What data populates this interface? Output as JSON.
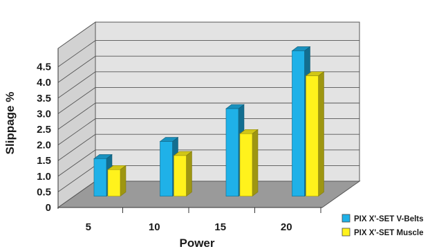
{
  "chart_data": {
    "type": "bar",
    "style": "3d",
    "categories": [
      "5",
      "10",
      "15",
      "20"
    ],
    "series": [
      {
        "name": "PIX X'-SET V-Belts",
        "values": [
          1.2,
          1.75,
          2.8,
          4.65
        ],
        "color": "#1fb1e8"
      },
      {
        "name": "PIX X'-SET Muscle",
        "values": [
          0.85,
          1.3,
          2.0,
          3.85
        ],
        "color": "#fff21c"
      }
    ],
    "xlabel": "Power",
    "ylabel": "Slippage %",
    "yticks": [
      "0",
      "0.5",
      "1.0",
      "1.5",
      "2.0",
      "2.5",
      "3.0",
      "3.5",
      "4.0",
      "4.5"
    ],
    "ylim": [
      0,
      5
    ],
    "grid": true,
    "legend_position": "bottom-right"
  }
}
